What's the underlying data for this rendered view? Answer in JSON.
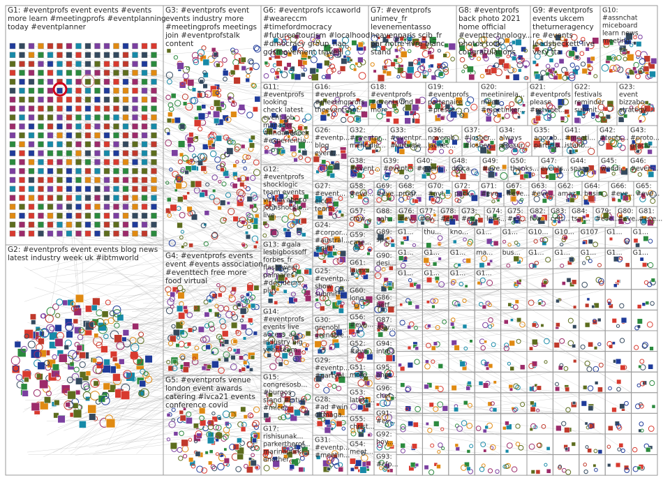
{
  "groups": [
    {
      "lines": [
        "G1: #eventprofs event events #events",
        "more learn #meetingprofs #eventplanning",
        "today #eventplanner"
      ]
    },
    {
      "lines": [
        "G2: #eventprofs event events blog news",
        "latest industry week uk #ibtmworld"
      ]
    },
    {
      "lines": [
        "G3: #eventprofs event",
        "events industry more",
        "#meetingprofs meetings",
        "join #eventprofstalk",
        "content"
      ]
    },
    {
      "lines": [
        "G4: #eventprofs events",
        "event #events association",
        "#eventtech free more",
        "food virtual"
      ]
    },
    {
      "lines": [
        "G5: #eventprofs venue",
        "london event awards",
        "catering #lvca21 events",
        "conference covid"
      ]
    },
    {
      "lines": [
        "G6: #eventprofs iccaworld",
        "#weareccm",
        "#timefordmocracy",
        "#futureoftourism #localhood",
        "#dmocracy group_nao",
        "gdsmovement travelll"
      ]
    },
    {
      "lines": [
        "G7: #eventprofs",
        "unimev_fr",
        "levenementasso",
        "heavenparis scib_fr",
        "par notre livre blanc",
        "stand"
      ]
    },
    {
      "lines": [
        "G8: #eventprofs",
        "back photo 2021",
        "home official",
        "#eventtechnology...",
        "photos took",
        "congratulations"
      ]
    },
    {
      "lines": [
        "G9: #eventprofs",
        "events ukcem",
        "theturneragency",
        "re #events",
        "leedsbeckett live",
        "very tta"
      ]
    },
    {
      "lines": [
        "G10:",
        "#assnchat",
        "miceboard",
        "learn news",
        "meeting..."
      ]
    },
    {
      "lines": [
        "G11:",
        "#eventprofs",
        "looking",
        "check latest",
        "event job",
        "manager",
        "#findandseek",
        "#experientia..."
      ]
    },
    {
      "lines": [
        "G16:",
        "#eventprofs",
        "#meetingprofs",
        "theeventsbot..."
      ]
    },
    {
      "lines": [
        "G18:",
        "#eventprofs",
        "#events find",
        "more..."
      ]
    },
    {
      "lines": [
        "G19:",
        "#eventprofs",
        "partenaire",
        "#presse..."
      ]
    },
    {
      "lines": [
        "G20:",
        "meetinirela...",
        "meet",
        "#meetinker..."
      ]
    },
    {
      "lines": [
        "G21:",
        "#eventprofs",
        "please",
        "#retweet..."
      ]
    },
    {
      "lines": [
        "G22:",
        "festivals",
        "reminder",
        "submit..."
      ]
    },
    {
      "lines": [
        "G23:",
        "event",
        "bizzabo",
        "strategy..."
      ]
    },
    {
      "lines": [
        "G26:",
        "#eventp...",
        "blog",
        "event..."
      ]
    },
    {
      "lines": [
        "G32:",
        "#eventpr...",
        "mehr die..."
      ]
    },
    {
      "lines": [
        "G33:",
        "#eventpr...",
        "#virtuale..."
      ]
    },
    {
      "lines": [
        "G36:",
        "novemb...",
        "lacitec..."
      ]
    },
    {
      "lines": [
        "G37:",
        "#losber...",
        "#losber..."
      ]
    },
    {
      "lines": [
        "G34:",
        "always",
        "pleasur..."
      ]
    },
    {
      "lines": [
        "G35:",
        "agorab...",
        "particip..."
      ]
    },
    {
      "lines": [
        "G41:",
        "#meeti...",
        "istanb..."
      ]
    },
    {
      "lines": [
        "G42:",
        "#tents..."
      ]
    },
    {
      "lines": [
        "G43:",
        "#proto...",
        "gracia..."
      ]
    },
    {
      "lines": [
        "G38:",
        "#event..."
      ]
    },
    {
      "lines": [
        "G39:",
        "#event..."
      ]
    },
    {
      "lines": [
        "G40:",
        "#event..."
      ]
    },
    {
      "lines": [
        "G48:",
        "dmca..."
      ]
    },
    {
      "lines": [
        "G49:",
        "#eve..."
      ]
    },
    {
      "lines": [
        "G50:",
        "thanks..."
      ]
    },
    {
      "lines": [
        "G47:",
        "events..."
      ]
    },
    {
      "lines": [
        "G44:",
        "sparq..."
      ]
    },
    {
      "lines": [
        "G45:",
        "weddi..."
      ]
    },
    {
      "lines": [
        "G46:",
        "#even..."
      ]
    },
    {
      "lines": [
        "G12:",
        "#eventprofs",
        "shocklogic",
        "team events",
        "virtual abpco",
        "johnshocklo...",
        "live..."
      ]
    },
    {
      "lines": [
        "G27:",
        "#event...",
        "eicc...",
        "team..."
      ]
    },
    {
      "lines": [
        "G13: #gala",
        "lesbigbossoff",
        "forbes_fr",
        "flashtweet",
        "palmares",
        "#decideurs",
        "plus..."
      ]
    },
    {
      "lines": [
        "G24:",
        "#corpor...",
        "#austral...",
        "#gift..."
      ]
    },
    {
      "lines": [
        "G25:",
        "#eventp...",
        "show",
        "submit..."
      ]
    },
    {
      "lines": [
        "G14:",
        "#eventprofs",
        "events live",
        "access_aa",
        "industry big",
        "year team..."
      ]
    },
    {
      "lines": [
        "G30:",
        "grenobl...",
        "grenoble..."
      ]
    },
    {
      "lines": [
        "G29:",
        "#eventp...",
        "#partypl..."
      ]
    },
    {
      "lines": [
        "G15:",
        "congresosb...",
        "#burgos",
        "stand #intur",
        "#mice..."
      ]
    },
    {
      "lines": [
        "G28:",
        "#ad #win",
        "citmaga..."
      ]
    },
    {
      "lines": [
        "G17:",
        "rishisunak...",
        "parkertherof...",
        "marinapurki...",
        "another..."
      ]
    },
    {
      "lines": [
        "G31:",
        "#eventp...",
        "#meetin..."
      ]
    },
    {
      "lines": [
        "G58:",
        "#eve..."
      ]
    },
    {
      "lines": [
        "G57:",
        "crow..."
      ]
    },
    {
      "lines": [
        "G59:",
        "case..."
      ]
    },
    {
      "lines": [
        "G61:",
        "launc..."
      ]
    },
    {
      "lines": [
        "G60:",
        "long..."
      ]
    },
    {
      "lines": [
        "G56:",
        "#eve..."
      ]
    },
    {
      "lines": [
        "G52:",
        "#eve..."
      ]
    },
    {
      "lines": [
        "G51:",
        "more..."
      ]
    },
    {
      "lines": [
        "G53:",
        "latest..."
      ]
    },
    {
      "lines": [
        "G55:",
        "christ..."
      ]
    },
    {
      "lines": [
        "G54:",
        "meet..."
      ]
    },
    {
      "lines": [
        "G69:",
        "#eve..."
      ]
    },
    {
      "lines": [
        "G88:",
        "nah..."
      ]
    },
    {
      "lines": [
        "G89:",
        "spe..."
      ]
    },
    {
      "lines": [
        "G90:",
        "desi..."
      ]
    },
    {
      "lines": [
        "G86:",
        "betf..."
      ]
    },
    {
      "lines": [
        "G87:",
        "#ev..."
      ]
    },
    {
      "lines": [
        "G94:",
        "inte..."
      ]
    },
    {
      "lines": [
        "G95:",
        "anot..."
      ]
    },
    {
      "lines": [
        "G96:",
        "chef..."
      ]
    },
    {
      "lines": [
        "G91:",
        "#ev..."
      ]
    },
    {
      "lines": [
        "G92:",
        "hoy..."
      ]
    },
    {
      "lines": [
        "G93:",
        "#cfp..."
      ]
    },
    {
      "lines": [
        "G68:",
        "progr..."
      ]
    },
    {
      "lines": [
        "G70:",
        "#avt..."
      ]
    },
    {
      "lines": [
        "G72:",
        "pack..."
      ]
    },
    {
      "lines": [
        "G71:",
        "#eve..."
      ]
    },
    {
      "lines": [
        "G67:",
        "#eve..."
      ]
    },
    {
      "lines": [
        "G63:",
        "#eve..."
      ]
    },
    {
      "lines": [
        "G62:",
        "amaz..."
      ]
    },
    {
      "lines": [
        "G64:",
        "busin..."
      ]
    },
    {
      "lines": [
        "G66:",
        "#eve..."
      ]
    },
    {
      "lines": [
        "G65:",
        "#eve..."
      ]
    },
    {
      "lines": [
        "G76:",
        "#ev..."
      ]
    },
    {
      "lines": [
        "G77:",
        "#ev..."
      ]
    },
    {
      "lines": [
        "G78:",
        "#ev..."
      ]
    },
    {
      "lines": [
        "G73:",
        "#ev..."
      ]
    },
    {
      "lines": [
        "G74:",
        "let's..."
      ]
    },
    {
      "lines": [
        "G75:",
        "#ev..."
      ]
    },
    {
      "lines": [
        "G82:",
        "few..."
      ]
    },
    {
      "lines": [
        "G83:",
        "cett..."
      ]
    },
    {
      "lines": [
        "G84:",
        "tsar..."
      ]
    },
    {
      "lines": [
        "G79:",
        "#eve..."
      ]
    },
    {
      "lines": [
        "G80:",
        "#eve..."
      ]
    },
    {
      "lines": [
        "G81:",
        "#eve..."
      ]
    }
  ],
  "grid_labels": [
    "G1...",
    "thu...",
    "kno...",
    "G1...",
    "G1...",
    "G10...",
    "G10...",
    "G107",
    "G1...",
    "G1...",
    "G1...",
    "G1...",
    "G1...",
    "ma...",
    "bus...",
    "G1...",
    "G1...",
    "G1...",
    "G1...",
    "G1...",
    "G1...",
    "G1...",
    "G1...",
    "G1..."
  ]
}
